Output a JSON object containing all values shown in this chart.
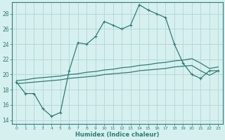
{
  "xlabel": "Humidex (Indice chaleur)",
  "x_values": [
    0,
    1,
    2,
    3,
    4,
    5,
    6,
    7,
    8,
    9,
    10,
    11,
    12,
    13,
    14,
    15,
    16,
    17,
    18,
    19,
    20,
    21,
    22,
    23
  ],
  "main_line": [
    19.0,
    17.5,
    17.5,
    15.5,
    14.5,
    15.0,
    20.5,
    24.2,
    24.0,
    25.0,
    27.0,
    26.5,
    26.0,
    26.5,
    29.2,
    28.5,
    28.0,
    27.5,
    24.0,
    21.5,
    20.0,
    19.5,
    20.5,
    20.5
  ],
  "line2": [
    19.2,
    19.3,
    19.5,
    19.6,
    19.7,
    19.8,
    20.0,
    20.1,
    20.3,
    20.4,
    20.6,
    20.7,
    20.9,
    21.0,
    21.2,
    21.3,
    21.5,
    21.6,
    21.8,
    21.9,
    22.1,
    21.5,
    20.8,
    21.0
  ],
  "line3": [
    18.8,
    18.9,
    19.0,
    19.1,
    19.2,
    19.3,
    19.5,
    19.6,
    19.7,
    19.8,
    20.0,
    20.1,
    20.2,
    20.3,
    20.5,
    20.6,
    20.7,
    20.8,
    21.0,
    21.1,
    21.2,
    20.5,
    19.9,
    20.5
  ],
  "line_color": "#2e7d72",
  "bg_color": "#d6f0f0",
  "grid_color": "#b8d8d8",
  "ylim": [
    13.5,
    29.5
  ],
  "xlim": [
    -0.5,
    23.5
  ],
  "yticks": [
    14,
    16,
    18,
    20,
    22,
    24,
    26,
    28
  ],
  "xticks": [
    0,
    1,
    2,
    3,
    4,
    5,
    6,
    7,
    8,
    9,
    10,
    11,
    12,
    13,
    14,
    15,
    16,
    17,
    18,
    19,
    20,
    21,
    22,
    23
  ]
}
